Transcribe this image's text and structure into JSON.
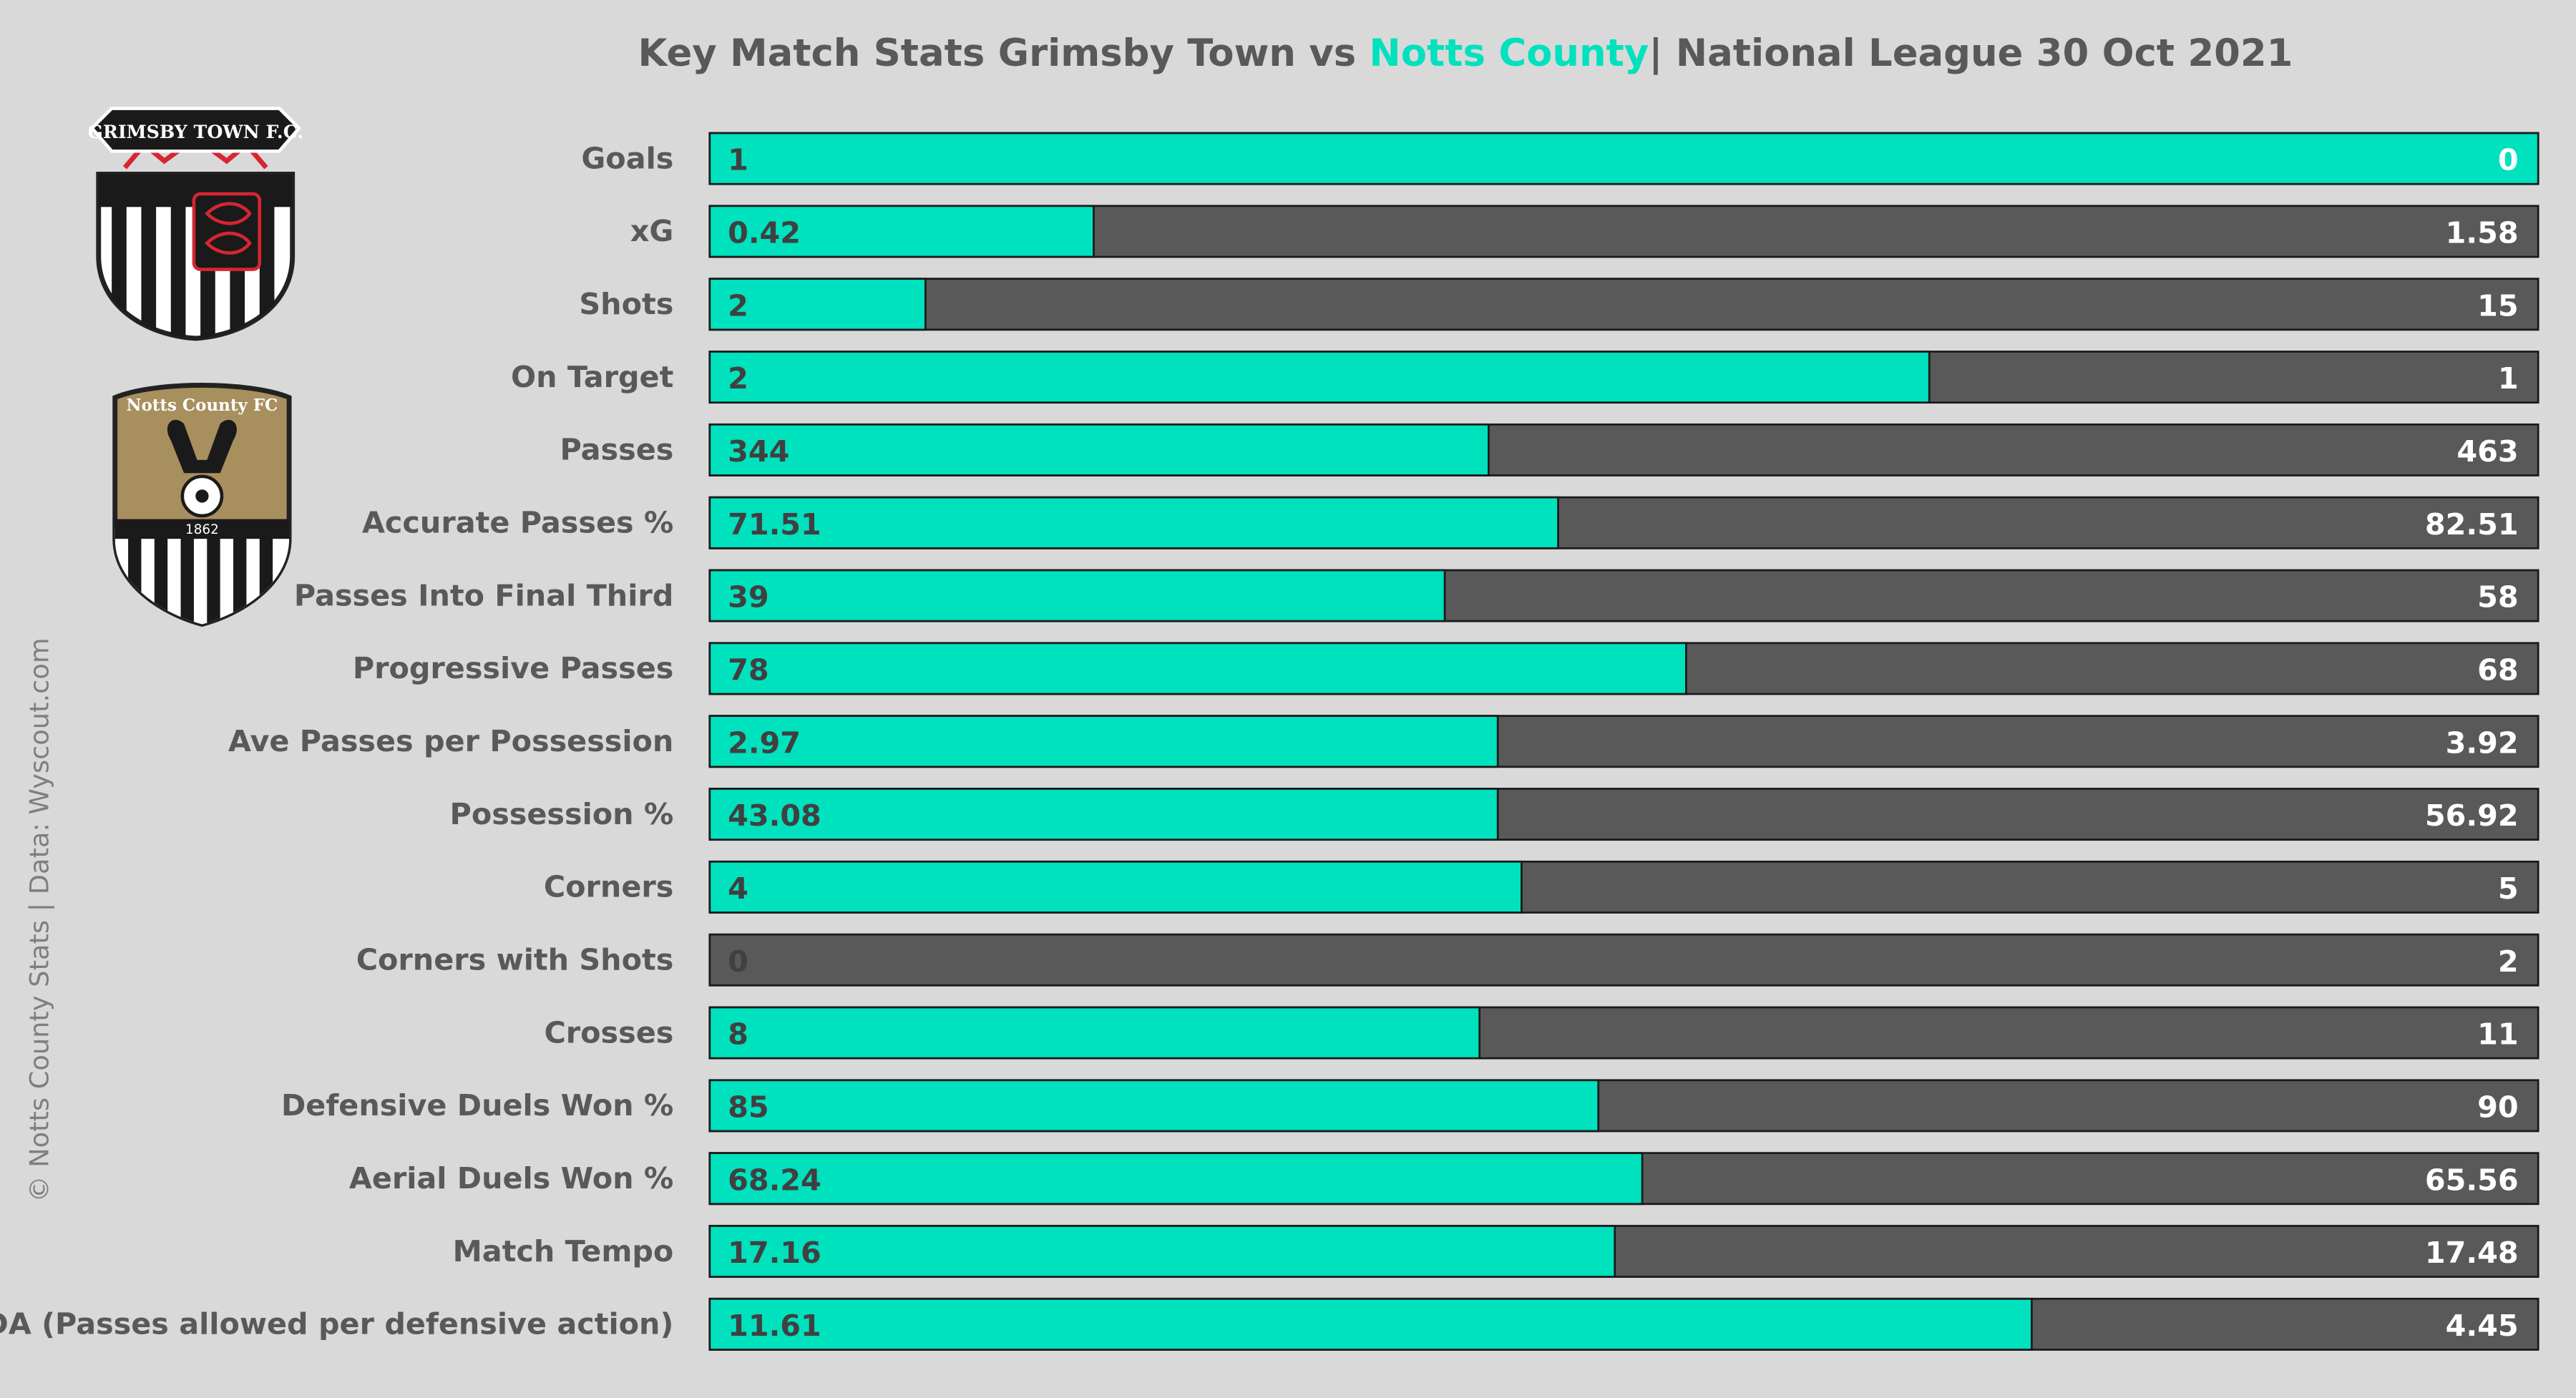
{
  "title": {
    "prefix": "Key Match Stats Grimsby Town vs ",
    "highlight": "Notts County",
    "suffix": "| National League 30 Oct 2021"
  },
  "credit": "© Notts County Stats | Data: Wyscout.com",
  "logos": [
    {
      "name": "grimsby-town-fc-crest",
      "text": "GRIMSBY TOWN F.C."
    },
    {
      "name": "notts-county-fc-crest",
      "text": "Notts County FC",
      "year": "1862"
    }
  ],
  "colors": {
    "home": "#00e1be",
    "away": "#595959",
    "background": "#d9d9d9",
    "label": "#595959",
    "accent_text": "#00e1be"
  },
  "chart_data": {
    "type": "bar",
    "orientation": "horizontal",
    "stacking": "proportional-100",
    "categories": [
      "Goals",
      "xG",
      "Shots",
      "On Target",
      "Passes",
      "Accurate Passes %",
      "Passes Into Final Third",
      "Progressive Passes",
      "Ave Passes per Possession",
      "Possession %",
      "Corners",
      "Corners with Shots",
      "Crosses",
      "Defensive Duels Won %",
      "Aerial Duels Won %",
      "Match Tempo",
      "PPDA (Passes allowed per defensive action)"
    ],
    "series": [
      {
        "values": [
          "1",
          "0.42",
          "2",
          "2",
          "344",
          "71.51",
          "39",
          "78",
          "2.97",
          "43.08",
          "4",
          "0",
          "8",
          "85",
          "68.24",
          "17.16",
          "11.61"
        ],
        "shares": [
          1.0,
          0.21,
          0.118,
          0.667,
          0.426,
          0.464,
          0.402,
          0.534,
          0.431,
          0.431,
          0.444,
          0.0,
          0.421,
          0.486,
          0.51,
          0.495,
          0.723
        ]
      },
      {
        "values": [
          "0",
          "1.58",
          "15",
          "1",
          "463",
          "82.51",
          "58",
          "68",
          "3.92",
          "56.92",
          "5",
          "2",
          "11",
          "90",
          "65.56",
          "17.48",
          "4.45"
        ],
        "shares": [
          0.0,
          0.79,
          0.882,
          0.333,
          0.574,
          0.536,
          0.598,
          0.466,
          0.569,
          0.569,
          0.556,
          1.0,
          0.579,
          0.514,
          0.49,
          0.505,
          0.277
        ]
      }
    ],
    "value_label_colors": {
      "home": "#404040",
      "away": "#ffffff",
      "zero_home": "#404040"
    }
  }
}
